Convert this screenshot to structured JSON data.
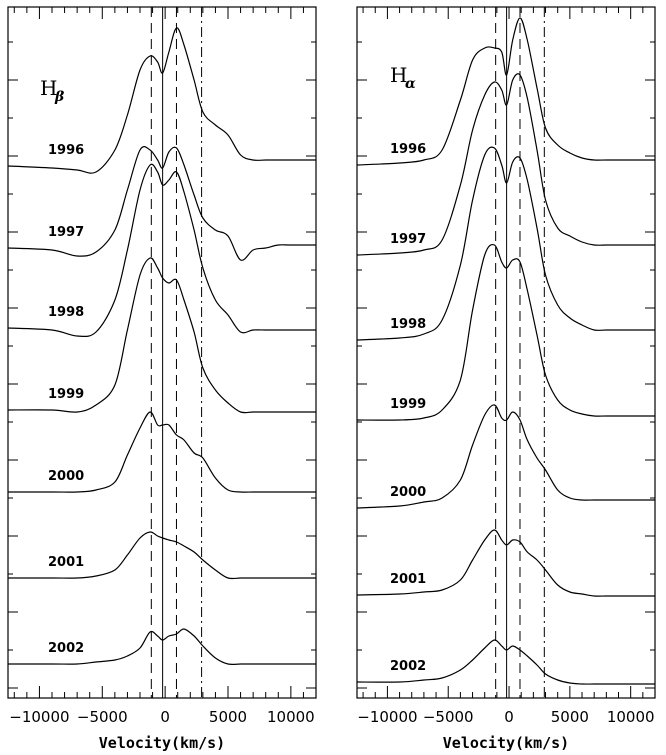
{
  "chart_data": [
    {
      "type": "line",
      "title": "H",
      "title_sub": "β",
      "xlabel": "Velocity(km/s)",
      "xlim": [
        -12500,
        12000
      ],
      "xticks": [
        -10000,
        -5000,
        0,
        5000,
        10000
      ],
      "xtick_labels": [
        "−10000",
        "−5000",
        "0",
        "5000",
        "10000"
      ],
      "reference_lines": [
        {
          "x": -1100,
          "style": "dashed"
        },
        {
          "x": -200,
          "style": "solid"
        },
        {
          "x": 900,
          "style": "dashed"
        },
        {
          "x": 2900,
          "style": "dashdot"
        }
      ],
      "series": [
        {
          "name": "1996",
          "x": [
            -12500,
            -9000,
            -7000,
            -5500,
            -4000,
            -3000,
            -2000,
            -1200,
            -600,
            -200,
            300,
            900,
            1500,
            2300,
            3000,
            4000,
            5000,
            6000,
            7000,
            8000,
            9000,
            10000,
            12000
          ],
          "y": [
            166,
            168,
            170,
            172,
            150,
            115,
            70,
            56,
            62,
            73,
            52,
            28,
            45,
            80,
            112,
            125,
            135,
            155,
            160,
            160,
            160,
            160,
            160
          ]
        },
        {
          "name": "1997",
          "x": [
            -12500,
            -9000,
            -7000,
            -5500,
            -4000,
            -3000,
            -2000,
            -1200,
            -600,
            -200,
            300,
            900,
            1500,
            2300,
            3000,
            4000,
            5000,
            6000,
            7000,
            8000,
            9000,
            10000,
            12000
          ],
          "y": [
            248,
            250,
            256,
            252,
            230,
            190,
            150,
            150,
            160,
            168,
            152,
            148,
            165,
            195,
            218,
            230,
            236,
            260,
            250,
            248,
            245,
            245,
            245
          ]
        },
        {
          "name": "1998",
          "x": [
            -12500,
            -9000,
            -7000,
            -5500,
            -4000,
            -3000,
            -2000,
            -1200,
            -600,
            -200,
            300,
            900,
            1500,
            2300,
            3000,
            4000,
            5000,
            6000,
            7000,
            8000,
            9000,
            10000,
            12000
          ],
          "y": [
            328,
            330,
            336,
            332,
            300,
            250,
            190,
            165,
            172,
            185,
            180,
            172,
            192,
            230,
            268,
            300,
            315,
            332,
            330,
            330,
            330,
            330,
            330
          ]
        },
        {
          "name": "1999",
          "x": [
            -12500,
            -9000,
            -7000,
            -5500,
            -4000,
            -3000,
            -2000,
            -1200,
            -600,
            -200,
            300,
            900,
            1500,
            2300,
            3000,
            4000,
            5000,
            6000,
            7000,
            8000,
            9000,
            10000,
            12000
          ],
          "y": [
            410,
            410,
            412,
            405,
            385,
            330,
            275,
            258,
            268,
            278,
            283,
            280,
            300,
            332,
            368,
            390,
            403,
            412,
            412,
            412,
            412,
            412,
            412
          ]
        },
        {
          "name": "2000",
          "x": [
            -12500,
            -9000,
            -7000,
            -5500,
            -4000,
            -3000,
            -2000,
            -1200,
            -600,
            -200,
            300,
            900,
            1500,
            2300,
            3000,
            4000,
            5000,
            6000,
            7000,
            8000,
            9000,
            10000,
            12000
          ],
          "y": [
            492,
            492,
            492,
            490,
            482,
            455,
            428,
            412,
            425,
            425,
            425,
            435,
            440,
            453,
            458,
            478,
            490,
            492,
            492,
            492,
            492,
            492,
            492
          ]
        },
        {
          "name": "2001",
          "x": [
            -12500,
            -9000,
            -7000,
            -5500,
            -4000,
            -3000,
            -2000,
            -1200,
            -600,
            -200,
            300,
            900,
            1500,
            2300,
            3000,
            4000,
            5000,
            6000,
            7000,
            8000,
            9000,
            10000,
            12000
          ],
          "y": [
            578,
            578,
            578,
            576,
            570,
            555,
            538,
            532,
            536,
            538,
            540,
            542,
            546,
            552,
            560,
            570,
            578,
            578,
            578,
            578,
            578,
            578,
            578
          ]
        },
        {
          "name": "2002",
          "x": [
            -12500,
            -9000,
            -7000,
            -5500,
            -4000,
            -3000,
            -2000,
            -1200,
            -600,
            -200,
            300,
            900,
            1500,
            2300,
            3000,
            4000,
            5000,
            6000,
            7000,
            8000,
            9000,
            10000,
            12000
          ],
          "y": [
            664,
            664,
            664,
            662,
            660,
            656,
            648,
            632,
            636,
            640,
            636,
            634,
            629,
            636,
            646,
            658,
            664,
            664,
            664,
            664,
            664,
            664,
            664
          ]
        }
      ]
    },
    {
      "type": "line",
      "title": "H",
      "title_sub": "α",
      "xlabel": "Velocity(km/s)",
      "xlim": [
        -12500,
        12000
      ],
      "xticks": [
        -10000,
        -5000,
        0,
        5000,
        10000
      ],
      "xtick_labels": [
        "−10000",
        "−5000",
        "0",
        "5000",
        "10000"
      ],
      "reference_lines": [
        {
          "x": -1100,
          "style": "dashed"
        },
        {
          "x": -200,
          "style": "solid"
        },
        {
          "x": 900,
          "style": "dashed"
        },
        {
          "x": 2900,
          "style": "dashdot"
        }
      ],
      "series": [
        {
          "name": "1996",
          "x": [
            -12500,
            -9000,
            -7000,
            -5500,
            -4000,
            -3000,
            -2000,
            -1200,
            -600,
            -200,
            300,
            900,
            1500,
            2300,
            3000,
            4000,
            5000,
            6000,
            7000,
            8000,
            9000,
            10000,
            12000
          ],
          "y": [
            165,
            163,
            160,
            150,
            100,
            60,
            48,
            48,
            52,
            75,
            40,
            18,
            40,
            88,
            128,
            145,
            153,
            158,
            160,
            160,
            160,
            160,
            160
          ]
        },
        {
          "name": "1997",
          "x": [
            -12500,
            -9000,
            -7000,
            -5500,
            -4000,
            -3000,
            -2000,
            -1200,
            -600,
            -200,
            300,
            900,
            1500,
            2300,
            3000,
            4000,
            5000,
            6000,
            7000,
            8000,
            9000,
            10000,
            12000
          ],
          "y": [
            255,
            253,
            250,
            240,
            185,
            130,
            95,
            82,
            90,
            105,
            80,
            75,
            98,
            150,
            200,
            228,
            236,
            242,
            245,
            245,
            245,
            245,
            245
          ]
        },
        {
          "name": "1998",
          "x": [
            -12500,
            -9000,
            -7000,
            -5500,
            -4000,
            -3000,
            -2000,
            -1200,
            -600,
            -200,
            300,
            900,
            1500,
            2300,
            3000,
            4000,
            5000,
            6000,
            7000,
            8000,
            9000,
            10000,
            12000
          ],
          "y": [
            340,
            338,
            334,
            320,
            265,
            200,
            155,
            148,
            165,
            183,
            162,
            158,
            180,
            228,
            275,
            305,
            318,
            325,
            330,
            330,
            330,
            330,
            330
          ]
        },
        {
          "name": "1999",
          "x": [
            -12500,
            -9000,
            -7000,
            -5500,
            -4000,
            -3000,
            -2000,
            -1200,
            -600,
            -200,
            300,
            900,
            1500,
            2300,
            3000,
            4000,
            5000,
            6000,
            7000,
            8000,
            9000,
            10000,
            12000
          ],
          "y": [
            420,
            420,
            418,
            410,
            380,
            310,
            255,
            245,
            262,
            268,
            260,
            262,
            290,
            335,
            375,
            400,
            410,
            414,
            416,
            416,
            416,
            416,
            416
          ]
        },
        {
          "name": "2000",
          "x": [
            -12500,
            -9000,
            -7000,
            -5500,
            -4000,
            -3000,
            -2000,
            -1200,
            -600,
            -200,
            300,
            900,
            1500,
            2300,
            3000,
            4000,
            5000,
            6000,
            7000,
            8000,
            9000,
            10000,
            12000
          ],
          "y": [
            508,
            506,
            502,
            498,
            480,
            445,
            415,
            405,
            418,
            420,
            412,
            420,
            440,
            458,
            470,
            490,
            498,
            500,
            500,
            500,
            500,
            500,
            500
          ]
        },
        {
          "name": "2001",
          "x": [
            -12500,
            -9000,
            -7000,
            -5500,
            -4000,
            -3000,
            -2000,
            -1200,
            -600,
            -200,
            300,
            900,
            1500,
            2300,
            3000,
            4000,
            5000,
            6000,
            7000,
            8000,
            9000,
            10000,
            12000
          ],
          "y": [
            595,
            594,
            592,
            590,
            580,
            560,
            540,
            530,
            540,
            545,
            540,
            542,
            552,
            560,
            570,
            585,
            592,
            594,
            596,
            596,
            596,
            596,
            596
          ]
        },
        {
          "name": "2002",
          "x": [
            -12500,
            -9000,
            -7000,
            -5500,
            -4000,
            -3000,
            -2000,
            -1200,
            -600,
            -200,
            300,
            900,
            1500,
            2300,
            3000,
            4000,
            5000,
            6000,
            7000,
            8000,
            9000,
            10000,
            12000
          ],
          "y": [
            682,
            682,
            680,
            678,
            670,
            660,
            648,
            640,
            646,
            650,
            646,
            650,
            656,
            665,
            674,
            680,
            683,
            684,
            684,
            684,
            684,
            684,
            684
          ]
        }
      ]
    }
  ]
}
